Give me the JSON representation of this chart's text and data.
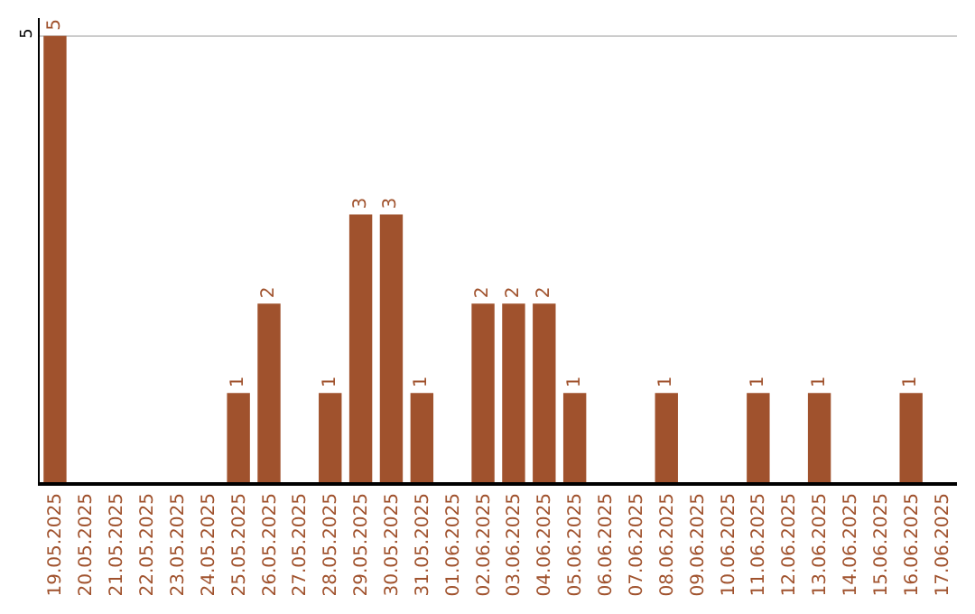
{
  "chart_data": {
    "type": "bar",
    "categories": [
      "19.05.2025",
      "20.05.2025",
      "21.05.2025",
      "22.05.2025",
      "23.05.2025",
      "24.05.2025",
      "25.05.2025",
      "26.05.2025",
      "27.05.2025",
      "28.05.2025",
      "29.05.2025",
      "30.05.2025",
      "31.05.2025",
      "01.06.2025",
      "02.06.2025",
      "03.06.2025",
      "04.06.2025",
      "05.06.2025",
      "06.06.2025",
      "07.06.2025",
      "08.06.2025",
      "09.06.2025",
      "10.06.2025",
      "11.06.2025",
      "12.06.2025",
      "13.06.2025",
      "14.06.2025",
      "15.06.2025",
      "16.06.2025",
      "17.06.2025"
    ],
    "values": [
      5,
      0,
      0,
      0,
      0,
      0,
      1,
      2,
      0,
      1,
      3,
      3,
      1,
      0,
      2,
      2,
      2,
      1,
      0,
      0,
      1,
      0,
      0,
      1,
      0,
      1,
      0,
      0,
      1,
      0
    ],
    "value_labels": [
      "5",
      null,
      null,
      null,
      null,
      null,
      "1",
      "2",
      null,
      "1",
      "3",
      "3",
      "1",
      null,
      "2",
      "2",
      "2",
      "1",
      null,
      null,
      "1",
      null,
      null,
      "1",
      null,
      "1",
      null,
      null,
      "1",
      null
    ],
    "color": "#a0522d",
    "ylim": [
      0,
      5.2
    ],
    "yticks": [
      5
    ],
    "grid": "y",
    "legend": false
  }
}
